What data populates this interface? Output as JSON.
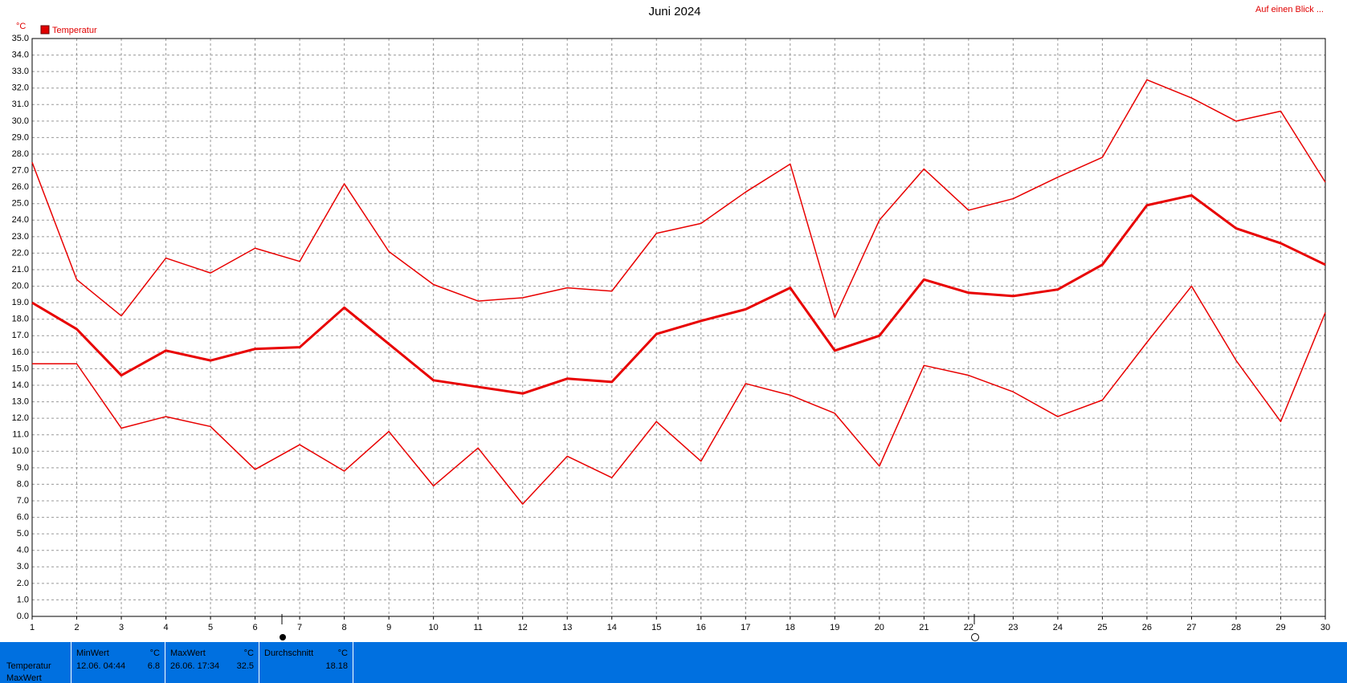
{
  "chart_data": {
    "type": "line",
    "title": "Juni 2024",
    "y_label": "°C",
    "corner_link": "Auf einen Blick ...",
    "x": [
      1,
      2,
      3,
      4,
      5,
      6,
      7,
      8,
      9,
      10,
      11,
      12,
      13,
      14,
      15,
      16,
      17,
      18,
      19,
      20,
      21,
      22,
      23,
      24,
      25,
      26,
      27,
      28,
      29,
      30
    ],
    "xlim": [
      1,
      30
    ],
    "xticks": [
      1,
      2,
      3,
      4,
      5,
      6,
      7,
      8,
      9,
      10,
      11,
      12,
      13,
      14,
      15,
      16,
      17,
      18,
      19,
      20,
      21,
      22,
      23,
      24,
      25,
      26,
      27,
      28,
      29,
      30
    ],
    "ylim": [
      0,
      35
    ],
    "yticks": [
      {
        "value": 0,
        "label": "0.0"
      },
      {
        "value": 1,
        "label": "1.0"
      },
      {
        "value": 2,
        "label": "2.0"
      },
      {
        "value": 3,
        "label": "3.0"
      },
      {
        "value": 4,
        "label": "4.0"
      },
      {
        "value": 5,
        "label": "5.0"
      },
      {
        "value": 6,
        "label": "6.0"
      },
      {
        "value": 7,
        "label": "7.0"
      },
      {
        "value": 8,
        "label": "8.0"
      },
      {
        "value": 9,
        "label": "9.0"
      },
      {
        "value": 10,
        "label": "10.0"
      },
      {
        "value": 11,
        "label": "11.0"
      },
      {
        "value": 12,
        "label": "12.0"
      },
      {
        "value": 13,
        "label": "13.0"
      },
      {
        "value": 14,
        "label": "14.0"
      },
      {
        "value": 15,
        "label": "15.0"
      },
      {
        "value": 16,
        "label": "16.0"
      },
      {
        "value": 17,
        "label": "17.0"
      },
      {
        "value": 18,
        "label": "18.0"
      },
      {
        "value": 19,
        "label": "19.0"
      },
      {
        "value": 20,
        "label": "20.0"
      },
      {
        "value": 21,
        "label": "21.0"
      },
      {
        "value": 22,
        "label": "22.0"
      },
      {
        "value": 23,
        "label": "23.0"
      },
      {
        "value": 24,
        "label": "24.0"
      },
      {
        "value": 25,
        "label": "25.0"
      },
      {
        "value": 26,
        "label": "26.0"
      },
      {
        "value": 27,
        "label": "27.0"
      },
      {
        "value": 28,
        "label": "28.0"
      },
      {
        "value": 29,
        "label": "29.0"
      },
      {
        "value": 30,
        "label": "30.0"
      },
      {
        "value": 31,
        "label": "31.0"
      },
      {
        "value": 32,
        "label": "32.0"
      },
      {
        "value": 33,
        "label": "33.0"
      },
      {
        "value": 34,
        "label": "34.0"
      },
      {
        "value": 35,
        "label": "35.0"
      }
    ],
    "grid": true,
    "series": [
      {
        "name": "Temperatur",
        "color": "#e80000",
        "width": 3,
        "values": [
          19.0,
          17.4,
          14.6,
          16.1,
          15.5,
          16.2,
          16.3,
          18.7,
          16.5,
          14.3,
          13.9,
          13.5,
          14.4,
          14.2,
          17.1,
          17.9,
          18.6,
          19.9,
          16.1,
          17.0,
          20.4,
          19.6,
          19.4,
          19.8,
          21.3,
          24.9,
          25.5,
          23.5,
          22.6,
          21.3
        ]
      },
      {
        "color": "#e80000",
        "width": 1.5,
        "values": [
          27.5,
          20.4,
          18.2,
          21.7,
          20.8,
          22.3,
          21.5,
          26.2,
          22.1,
          20.1,
          19.1,
          19.3,
          19.9,
          19.7,
          23.2,
          23.8,
          25.7,
          27.4,
          18.1,
          24.0,
          27.1,
          24.6,
          25.3,
          26.6,
          27.8,
          32.5,
          31.4,
          30.0,
          30.6,
          26.3
        ]
      },
      {
        "color": "#e80000",
        "width": 1.5,
        "values": [
          15.3,
          15.3,
          11.4,
          12.1,
          11.5,
          8.9,
          10.4,
          8.8,
          11.2,
          7.9,
          10.2,
          6.8,
          9.7,
          8.4,
          11.8,
          9.4,
          14.1,
          13.4,
          12.3,
          9.1,
          15.2,
          14.6,
          13.6,
          12.1,
          13.1,
          16.6,
          20.0,
          15.5,
          11.8,
          18.4
        ]
      }
    ]
  },
  "stats_panel": {
    "row_labels": [
      "Temperatur",
      "MaxWert"
    ],
    "columns": [
      {
        "header": "MinWert",
        "unit": "°C",
        "time": "12.06.  04:44",
        "value": 6.8
      },
      {
        "header": "MaxWert",
        "unit": "°C",
        "time": "26.06.  17:34",
        "value": 32.5
      },
      {
        "header": "Durchschnitt",
        "unit": "°C",
        "value": 18.18
      }
    ]
  }
}
